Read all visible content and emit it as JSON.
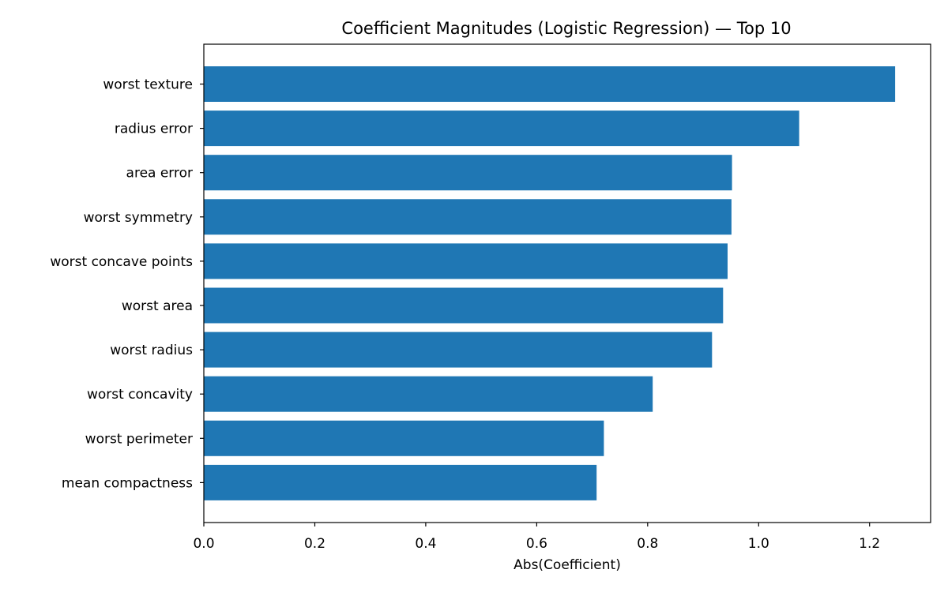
{
  "chart_data": {
    "type": "bar",
    "orientation": "horizontal",
    "title": "Coefficient Magnitudes (Logistic Regression) — Top 10",
    "xlabel": "Abs(Coefficient)",
    "ylabel": "",
    "xlim": [
      0.0,
      1.31
    ],
    "xticks": [
      "0.0",
      "0.2",
      "0.4",
      "0.6",
      "0.8",
      "1.0",
      "1.2"
    ],
    "grid": false,
    "bar_color": "#1f77b4",
    "categories": [
      "worst texture",
      "radius error",
      "area error",
      "worst symmetry",
      "worst concave points",
      "worst area",
      "worst radius",
      "worst concavity",
      "worst perimeter",
      "mean compactness"
    ],
    "values": [
      1.246,
      1.073,
      0.952,
      0.951,
      0.944,
      0.936,
      0.916,
      0.809,
      0.721,
      0.708
    ]
  }
}
